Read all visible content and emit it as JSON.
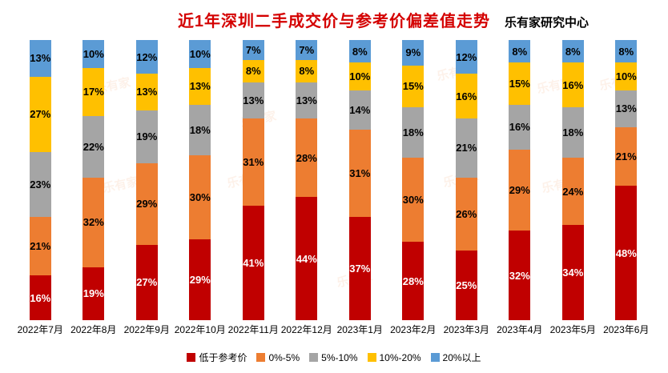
{
  "header": {
    "title": "近1年深圳二手成交价与参考价偏差值走势",
    "title_color": "#d40000",
    "source": "乐有家研究中心"
  },
  "watermark": {
    "text": "乐有家"
  },
  "chart_data": {
    "type": "bar",
    "variant": "stacked-100-percent-column",
    "title": "近1年深圳二手成交价与参考价偏差值走势",
    "xlabel": "",
    "ylabel": "",
    "ylim": [
      0,
      100
    ],
    "grid": false,
    "legend_position": "bottom",
    "value_suffix": "%",
    "categories": [
      "2022年7月",
      "2022年8月",
      "2022年9月",
      "2022年10月",
      "2022年11月",
      "2022年12月",
      "2023年1月",
      "2023年2月",
      "2023年3月",
      "2023年4月",
      "2023年5月",
      "2023年6月"
    ],
    "series": [
      {
        "name": "低于参考价",
        "color": "#c00000",
        "label_color": "#ffffff",
        "values": [
          16,
          19,
          27,
          29,
          41,
          44,
          37,
          28,
          25,
          32,
          34,
          48
        ]
      },
      {
        "name": "0%-5%",
        "color": "#ed7d31",
        "label_color": "#000000",
        "values": [
          21,
          32,
          29,
          30,
          31,
          28,
          31,
          30,
          26,
          29,
          24,
          21
        ]
      },
      {
        "name": "5%-10%",
        "color": "#a5a5a5",
        "label_color": "#000000",
        "values": [
          23,
          22,
          19,
          18,
          13,
          13,
          14,
          18,
          21,
          16,
          18,
          13
        ]
      },
      {
        "name": "10%-20%",
        "color": "#ffc000",
        "label_color": "#000000",
        "values": [
          27,
          17,
          13,
          13,
          8,
          8,
          10,
          15,
          16,
          15,
          16,
          10
        ]
      },
      {
        "name": "20%以上",
        "color": "#5b9bd5",
        "label_color": "#000000",
        "values": [
          13,
          10,
          12,
          10,
          7,
          7,
          8,
          9,
          12,
          8,
          8,
          8
        ]
      }
    ]
  }
}
